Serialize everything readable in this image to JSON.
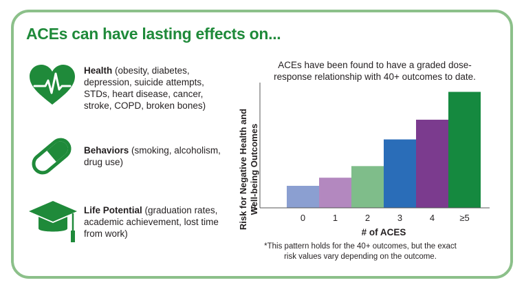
{
  "headline": "ACEs can have lasting effects on...",
  "effects": [
    {
      "icon": "heart-pulse-icon",
      "title": "Health",
      "detail": " (obesity, diabetes, depression, suicide attempts, STDs, heart disease, cancer, stroke, COPD, broken bones)"
    },
    {
      "icon": "pill-capsule-icon",
      "title": "Behaviors",
      "detail": " (smoking, alcoholism, drug use)"
    },
    {
      "icon": "graduation-cap-icon",
      "title": "Life Potential",
      "detail": " (graduation rates, academic achievement, lost time from work)"
    }
  ],
  "colors": {
    "accent": "#1f8a3a",
    "border": "#8cc08a",
    "icon": "#1f8a3a"
  },
  "chart_data": {
    "type": "bar",
    "title": "ACEs have been found to have a graded dose-response relationship with 40+ outcomes to date.",
    "ylabel": "Risk for Negative Health and Well-being Outcomes",
    "xlabel": "# of ACES",
    "categories": [
      "0",
      "1",
      "2",
      "3",
      "4",
      "≥5"
    ],
    "values": [
      1.9,
      2.6,
      3.6,
      5.9,
      7.6,
      10.0
    ],
    "y_tick_labels": [
      "0"
    ],
    "ylim": [
      0,
      10.8
    ],
    "bar_colors": [
      "#8b9fd1",
      "#b388bf",
      "#7fbd8a",
      "#2a6db8",
      "#7b3b8e",
      "#15893f"
    ],
    "grid": false,
    "legend": "none"
  },
  "footnote": "*This pattern holds for the 40+ outcomes, but the exact risk values vary depending on the outcome."
}
